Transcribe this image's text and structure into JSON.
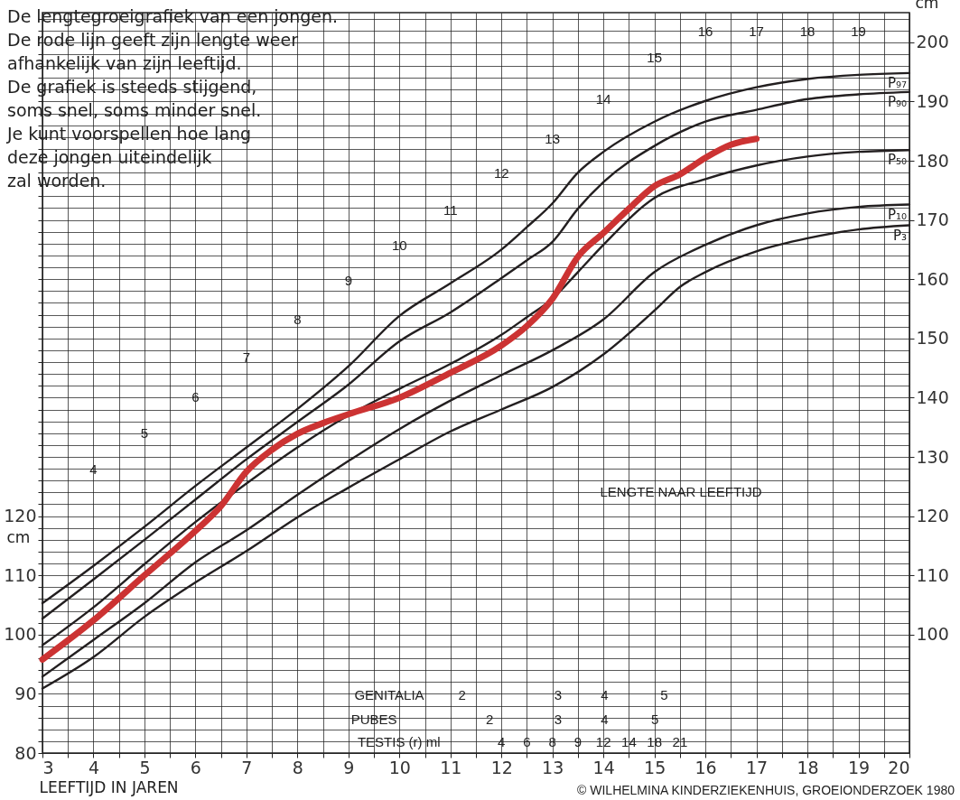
{
  "chart_data": {
    "type": "line",
    "annotations": [
      "De lengtegroeigrafiek van een jongen.\nDe rode lijn geeft zijn lengte weer\nafhankelijk van zijn leeftijd.\nDe grafiek is steeds stijgend,\nsoms snel, soms minder snel.\nJe kunt voorspellen hoe lang\ndeze jongen uiteindelijk\nzal worden.",
      "© WILHELMINA KINDERZIEKENHUIS, GROEIONDERZOEK 1980",
      "LENGTE NAAR LEEFTIJD",
      "4",
      "5",
      "6",
      "7",
      "8",
      "9",
      "10",
      "11",
      "12",
      "13",
      "14",
      "15",
      "16",
      "17",
      "18",
      "19",
      "GENITALIA",
      "2",
      "3",
      "4",
      "5",
      "PUBES",
      "2",
      "3",
      "4",
      "5",
      "TESTIS (r)  ml",
      "4",
      "6",
      "8",
      "9",
      "12",
      "14",
      "18",
      "21"
    ],
    "xlabel": "LEEFTIJD IN JAREN",
    "ylabel": "cm",
    "y2label": "cm",
    "xlim": [
      3,
      20
    ],
    "ylim": [
      80,
      205
    ],
    "y2lim": [
      80,
      205
    ],
    "xticks": [
      3,
      {
        "value": 3.5,
        "label": null
      },
      4,
      {
        "value": 4.5,
        "label": null
      },
      5,
      {
        "value": 5.5,
        "label": null
      },
      6,
      {
        "value": 6.5,
        "label": null
      },
      7,
      {
        "value": 7.5,
        "label": null
      },
      8,
      {
        "value": 8.5,
        "label": null
      },
      9,
      {
        "value": 9.5,
        "label": null
      },
      10,
      {
        "value": 10.5,
        "label": null
      },
      11,
      {
        "value": 11.5,
        "label": null
      },
      12,
      {
        "value": 12.5,
        "label": null
      },
      13,
      {
        "value": 13.5,
        "label": null
      },
      14,
      {
        "value": 14.5,
        "label": null
      },
      15,
      {
        "value": 15.5,
        "label": null
      },
      16,
      {
        "value": 16.5,
        "label": null
      },
      17,
      {
        "value": 17.5,
        "label": null
      },
      18,
      {
        "value": 18.5,
        "label": null
      },
      19,
      {
        "value": 19.5,
        "label": null
      },
      20
    ],
    "yticks": [
      80,
      {
        "value": 82,
        "label": null
      },
      {
        "value": 84,
        "label": null
      },
      {
        "value": 86,
        "label": null
      },
      {
        "value": 88,
        "label": null
      },
      90,
      {
        "value": 92,
        "label": null
      },
      {
        "value": 94,
        "label": null
      },
      {
        "value": 96,
        "label": null
      },
      {
        "value": 98,
        "label": null
      },
      100,
      {
        "value": 102,
        "label": null
      },
      {
        "value": 104,
        "label": null
      },
      {
        "value": 106,
        "label": null
      },
      {
        "value": 108,
        "label": null
      },
      110,
      {
        "value": 112,
        "label": null
      },
      {
        "value": 114,
        "label": null
      },
      {
        "value": 116,
        "label": null
      },
      {
        "value": 118,
        "label": null
      },
      120,
      {
        "value": 122,
        "label": null
      },
      {
        "value": 124,
        "label": null
      },
      {
        "value": 126,
        "label": null
      },
      {
        "value": 128,
        "label": null
      },
      {
        "value": 130,
        "label": null
      },
      {
        "value": 132,
        "label": null
      },
      {
        "value": 134,
        "label": null
      },
      {
        "value": 136,
        "label": null
      },
      {
        "value": 138,
        "label": null
      },
      {
        "value": 140,
        "label": null
      },
      {
        "value": 142,
        "label": null
      },
      {
        "value": 144,
        "label": null
      },
      {
        "value": 146,
        "label": null
      },
      {
        "value": 148,
        "label": null
      },
      {
        "value": 150,
        "label": null
      },
      {
        "value": 152,
        "label": null
      },
      {
        "value": 154,
        "label": null
      },
      {
        "value": 156,
        "label": null
      },
      {
        "value": 158,
        "label": null
      },
      {
        "value": 160,
        "label": null
      },
      {
        "value": 162,
        "label": null
      },
      {
        "value": 164,
        "label": null
      },
      {
        "value": 166,
        "label": null
      },
      {
        "value": 168,
        "label": null
      },
      {
        "value": 170,
        "label": null
      },
      {
        "value": 172,
        "label": null
      },
      {
        "value": 174,
        "label": null
      },
      {
        "value": 176,
        "label": null
      },
      {
        "value": 178,
        "label": null
      },
      {
        "value": 180,
        "label": null
      },
      {
        "value": 182,
        "label": null
      },
      {
        "value": 184,
        "label": null
      },
      {
        "value": 186,
        "label": null
      },
      {
        "value": 188,
        "label": null
      },
      {
        "value": 190,
        "label": null
      },
      {
        "value": 192,
        "label": null
      },
      {
        "value": 194,
        "label": null
      },
      {
        "value": 196,
        "label": null
      },
      {
        "value": 198,
        "label": null
      },
      {
        "value": 200,
        "label": null
      },
      {
        "value": 202,
        "label": null
      },
      {
        "value": 204,
        "label": null
      }
    ],
    "y2ticks": [
      100,
      110,
      120,
      130,
      140,
      150,
      160,
      170,
      180,
      190,
      200
    ],
    "grid": true,
    "line_style": "solid",
    "series": [
      {
        "name": "P₉₇",
        "color": "#231f20",
        "x": [
          3,
          4,
          5,
          6,
          7,
          8,
          9,
          10,
          11,
          12,
          12.5,
          13,
          13.5,
          14,
          15,
          16,
          17,
          18,
          19,
          20
        ],
        "values": [
          105.3,
          111.6,
          118.2,
          125.1,
          131.6,
          138.1,
          145.3,
          153.8,
          159.3,
          165,
          168.8,
          172.8,
          178,
          181.5,
          186.6,
          190.1,
          192.4,
          193.8,
          194.5,
          194.8
        ]
      },
      {
        "name": "P₉₀",
        "color": "#231f20",
        "x": [
          3,
          4,
          5,
          6,
          7,
          8,
          9,
          10,
          11,
          12,
          12.5,
          13,
          13.5,
          14,
          15,
          16,
          17,
          18,
          19,
          20
        ],
        "values": [
          102.7,
          109.3,
          116,
          122.8,
          129.6,
          135.9,
          142.2,
          149.5,
          154.4,
          160.2,
          163.2,
          166.3,
          171.9,
          176.4,
          182.5,
          186.6,
          188.6,
          190.4,
          191.2,
          191.6
        ]
      },
      {
        "name": "P₅₀",
        "color": "#231f20",
        "x": [
          3,
          4,
          5,
          6,
          7,
          8,
          9,
          10,
          11,
          12,
          12.5,
          13,
          13.5,
          14,
          15,
          16,
          17,
          18,
          19,
          20
        ],
        "values": [
          98.2,
          104.6,
          111.9,
          119,
          125.5,
          131.6,
          137,
          141.5,
          145.7,
          150.6,
          153.6,
          156.7,
          161.2,
          165.8,
          173.7,
          176.9,
          179.2,
          180.7,
          181.5,
          181.8
        ]
      },
      {
        "name": "P₁₀",
        "color": "#231f20",
        "x": [
          3,
          4,
          5,
          6,
          7,
          8,
          9,
          10,
          11,
          12,
          13,
          14,
          15,
          16,
          17,
          18,
          19,
          20
        ],
        "values": [
          92.9,
          99.1,
          105.3,
          112.2,
          117.6,
          123.6,
          129.3,
          134.7,
          139.5,
          143.8,
          148,
          153.2,
          161.2,
          165.8,
          169.1,
          171.1,
          172.2,
          172.6
        ]
      },
      {
        "name": "P₃",
        "color": "#231f20",
        "x": [
          3,
          4,
          5,
          6,
          7,
          8,
          9,
          10,
          11,
          12,
          13,
          14,
          15,
          15.5,
          16,
          17,
          18,
          19,
          20
        ],
        "values": [
          90.9,
          96.2,
          103,
          108.8,
          114.1,
          119.8,
          124.8,
          129.6,
          134.3,
          138,
          141.8,
          147.3,
          154.7,
          158.7,
          161.2,
          164.7,
          166.9,
          168.4,
          169.1
        ]
      },
      {
        "color": "#cc3333",
        "x": [
          3,
          4,
          5,
          6,
          6.5,
          7,
          7.5,
          8,
          8.5,
          9,
          10,
          11,
          12,
          12.5,
          13,
          13.5,
          14,
          14.5,
          15,
          15.5,
          16,
          16.5,
          17
        ],
        "values": [
          95.8,
          102.4,
          110,
          117.5,
          121.7,
          127.5,
          131.2,
          133.9,
          135.7,
          137.2,
          140,
          144.2,
          148.8,
          152.1,
          156.7,
          163.8,
          167.8,
          171.9,
          175.7,
          177.7,
          180.5,
          182.7,
          183.7
        ]
      }
    ]
  }
}
